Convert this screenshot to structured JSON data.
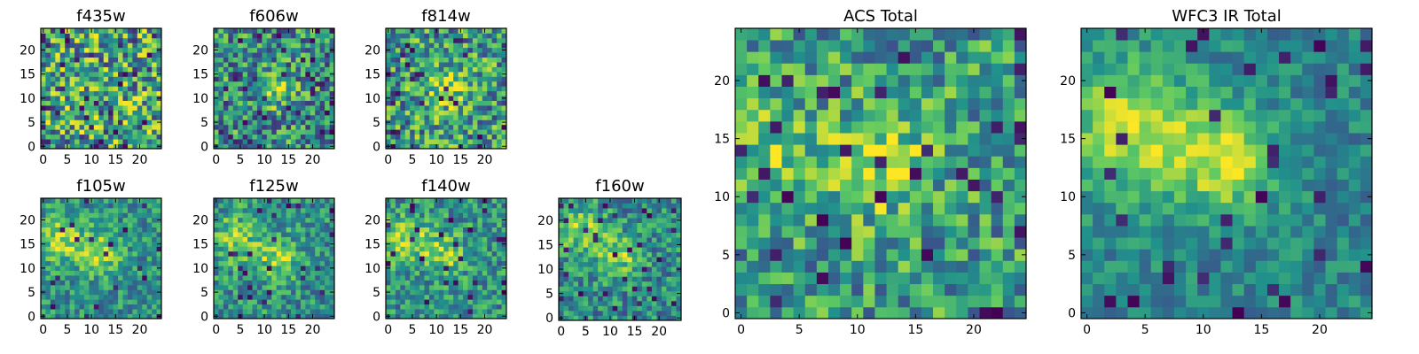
{
  "figure": {
    "colormap": [
      "#440154",
      "#3b528b",
      "#21918c",
      "#5ec962",
      "#fde725"
    ],
    "frame_color": "#000000"
  },
  "chart_data": [
    {
      "type": "heatmap",
      "title": "f435w",
      "size": 25,
      "xticks": [
        0,
        5,
        10,
        15,
        20
      ],
      "yticks": [
        0,
        5,
        10,
        15,
        20
      ],
      "seed": 11,
      "noise": 0.85,
      "bias": 0.58,
      "blobs": [],
      "rare_dark": 0.05
    },
    {
      "type": "heatmap",
      "title": "f606w",
      "size": 25,
      "xticks": [
        0,
        5,
        10,
        15,
        20
      ],
      "yticks": [
        0,
        5,
        10,
        15,
        20
      ],
      "seed": 23,
      "noise": 0.7,
      "bias": 0.5,
      "blobs": [
        {
          "x": 12,
          "y": 12,
          "r": 2.5,
          "a": 0.35
        }
      ],
      "rare_dark": 0.06
    },
    {
      "type": "heatmap",
      "title": "f814w",
      "size": 25,
      "xticks": [
        0,
        5,
        10,
        15,
        20
      ],
      "yticks": [
        0,
        5,
        10,
        15,
        20
      ],
      "seed": 37,
      "noise": 0.72,
      "bias": 0.55,
      "blobs": [
        {
          "x": 12,
          "y": 12,
          "r": 3,
          "a": 0.3
        }
      ],
      "rare_dark": 0.05
    },
    {
      "type": "heatmap",
      "title": "f105w",
      "size": 25,
      "xticks": [
        0,
        5,
        10,
        15,
        20
      ],
      "yticks": [
        0,
        5,
        10,
        15,
        20
      ],
      "seed": 41,
      "noise": 0.45,
      "bias": 0.5,
      "blobs": [
        {
          "x": 4,
          "y": 16,
          "r": 3.5,
          "a": 0.35
        },
        {
          "x": 12,
          "y": 13,
          "r": 3,
          "a": 0.35
        }
      ],
      "rare_dark": 0.04
    },
    {
      "type": "heatmap",
      "title": "f125w",
      "size": 25,
      "xticks": [
        0,
        5,
        10,
        15,
        20
      ],
      "yticks": [
        0,
        5,
        10,
        15,
        20
      ],
      "seed": 53,
      "noise": 0.5,
      "bias": 0.5,
      "blobs": [
        {
          "x": 4,
          "y": 16,
          "r": 3.5,
          "a": 0.3
        },
        {
          "x": 13,
          "y": 12,
          "r": 3,
          "a": 0.35
        }
      ],
      "rare_dark": 0.05
    },
    {
      "type": "heatmap",
      "title": "f140w",
      "size": 25,
      "xticks": [
        0,
        5,
        10,
        15,
        20
      ],
      "yticks": [
        0,
        5,
        10,
        15,
        20
      ],
      "seed": 61,
      "noise": 0.5,
      "bias": 0.5,
      "blobs": [
        {
          "x": 4,
          "y": 16,
          "r": 3.5,
          "a": 0.35
        },
        {
          "x": 12,
          "y": 13,
          "r": 3,
          "a": 0.3
        }
      ],
      "rare_dark": 0.05
    },
    {
      "type": "heatmap",
      "title": "f160w",
      "size": 25,
      "xticks": [
        0,
        5,
        10,
        15,
        20
      ],
      "yticks": [
        0,
        5,
        10,
        15,
        20
      ],
      "seed": 71,
      "noise": 0.5,
      "bias": 0.48,
      "blobs": [
        {
          "x": 4,
          "y": 18,
          "r": 3.5,
          "a": 0.35
        },
        {
          "x": 12,
          "y": 13,
          "r": 3,
          "a": 0.35
        }
      ],
      "rare_dark": 0.05
    },
    {
      "type": "heatmap",
      "title": "ACS Total",
      "size": 25,
      "xticks": [
        0,
        5,
        10,
        15,
        20
      ],
      "yticks": [
        0,
        5,
        10,
        15,
        20
      ],
      "seed": 83,
      "noise": 0.6,
      "bias": 0.55,
      "blobs": [
        {
          "x": 12,
          "y": 13,
          "r": 3,
          "a": 0.35
        },
        {
          "x": 2,
          "y": 14,
          "r": 3,
          "a": 0.2
        }
      ],
      "rare_dark": 0.06
    },
    {
      "type": "heatmap",
      "title": "WFC3 IR Total",
      "size": 25,
      "xticks": [
        0,
        5,
        10,
        15,
        20
      ],
      "yticks": [
        0,
        5,
        10,
        15,
        20
      ],
      "seed": 97,
      "noise": 0.32,
      "bias": 0.45,
      "blobs": [
        {
          "x": 4,
          "y": 16,
          "r": 4,
          "a": 0.45
        },
        {
          "x": 12,
          "y": 13,
          "r": 3,
          "a": 0.45
        }
      ],
      "rare_dark": 0.05
    }
  ]
}
